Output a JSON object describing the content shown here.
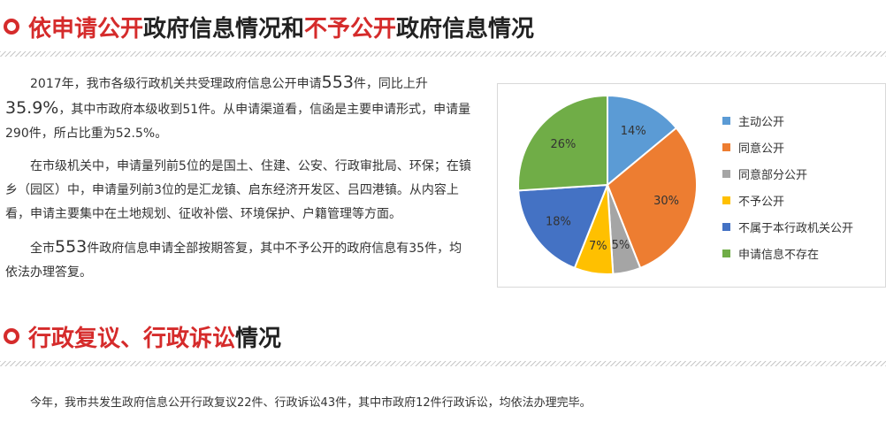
{
  "section1": {
    "title_parts": [
      {
        "text": "依申请公开",
        "hl": true
      },
      {
        "text": "政府信息情况和",
        "hl": false
      },
      {
        "text": "不予公开",
        "hl": true
      },
      {
        "text": "政府信息情况",
        "hl": false
      }
    ],
    "p1": {
      "pre": "2017年，我市各级行政机关共受理政府信息公开申请",
      "num1": "553",
      "mid": "件，同比上升",
      "num2": "35.9%",
      "post": "，其中市政府本级收到51件。从申请渠道看，信函是主要申请形式，申请量290件，所占比重为52.5%。"
    },
    "p2": "在市级机关中，申请量列前5位的是国土、住建、公安、行政审批局、环保；在镇乡（园区）中，申请量列前3位的是汇龙镇、启东经济开发区、吕四港镇。从内容上看，申请主要集中在土地规划、征收补偿、环境保护、户籍管理等方面。",
    "p3": {
      "pre": "全市",
      "num": "553",
      "post": "件政府信息申请全部按期答复，其中不予公开的政府信息有35件，均依法办理答复。"
    }
  },
  "section2": {
    "title_parts": [
      {
        "text": "行政复议、行政诉讼",
        "hl": true
      },
      {
        "text": "情况",
        "hl": false
      }
    ],
    "text": "今年，我市共发生政府信息公开行政复议22件、行政诉讼43件，其中市政府12件行政诉讼，均依法办理完毕。"
  },
  "chart_data": {
    "type": "pie",
    "title": "",
    "legend_position": "right",
    "slices": [
      {
        "label": "主动公开",
        "value": 14,
        "display": "14%",
        "color": "#5b9bd5"
      },
      {
        "label": "同意公开",
        "value": 30,
        "display": "30%",
        "color": "#ed7d31"
      },
      {
        "label": "同意部分公开",
        "value": 5,
        "display": "5%",
        "color": "#a5a5a5"
      },
      {
        "label": "不予公开",
        "value": 7,
        "display": "7%",
        "color": "#ffc000"
      },
      {
        "label": "不属于本行政机关公开",
        "value": 18,
        "display": "18%",
        "color": "#4472c4"
      },
      {
        "label": "申请信息不存在",
        "value": 26,
        "display": "26%",
        "color": "#70ad47"
      }
    ]
  }
}
